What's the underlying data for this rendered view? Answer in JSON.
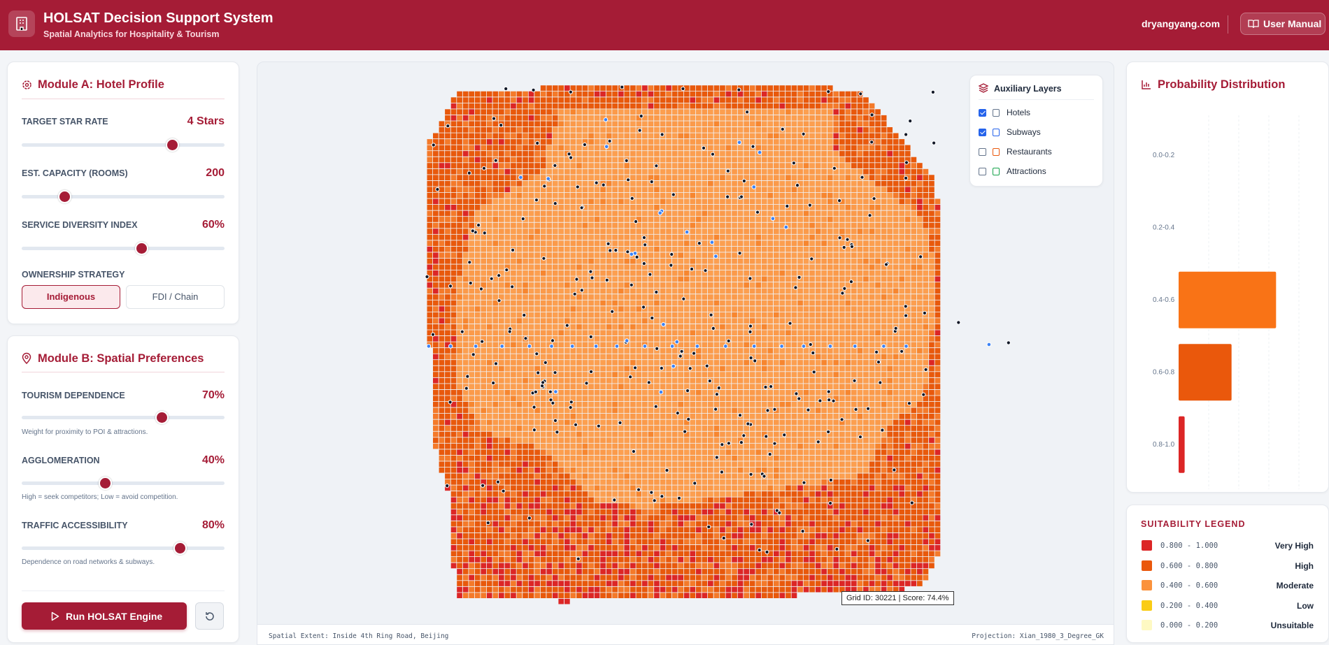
{
  "header": {
    "title": "HOLSAT Decision Support System",
    "subtitle": "Spatial Analytics for Hospitality & Tourism",
    "site": "dryangyang.com",
    "manual": "User Manual"
  },
  "module_a": {
    "title": "Module A: Hotel Profile",
    "fields": [
      {
        "label": "TARGET STAR RATE",
        "value": "4 Stars"
      },
      {
        "label": "EST. CAPACITY (ROOMS)",
        "value": "200"
      },
      {
        "label": "SERVICE DIVERSITY INDEX",
        "value": "60%"
      }
    ],
    "ownership": {
      "label": "OWNERSHIP STRATEGY",
      "options": [
        "Indigenous",
        "FDI / Chain"
      ]
    }
  },
  "module_b": {
    "title": "Module B: Spatial Preferences",
    "fields": [
      {
        "label": "TOURISM DEPENDENCE",
        "value": "70%",
        "note": "Weight for proximity to POI & attractions."
      },
      {
        "label": "AGGLOMERATION",
        "value": "40%",
        "note": "High = seek competitors; Low = avoid competition."
      },
      {
        "label": "TRAFFIC ACCESSIBILITY",
        "value": "80%",
        "note": "Dependence on road networks & subways."
      }
    ]
  },
  "actions": {
    "run": "Run HOLSAT Engine"
  },
  "map": {
    "layers_title": "Auxiliary Layers",
    "layers": [
      {
        "name": "Hotels",
        "checked": true
      },
      {
        "name": "Subways",
        "checked": true
      },
      {
        "name": "Restaurants",
        "checked": false
      },
      {
        "name": "Attractions",
        "checked": false
      }
    ],
    "tooltip": "Grid ID: 30221 | Score: 74.4%",
    "extent": "Spatial Extent: Inside 4th Ring Road, Beijing",
    "projection": "Projection: Xian_1980_3_Degree_GK"
  },
  "chart_data": {
    "type": "hbar",
    "title": "Probability Distribution",
    "categories": [
      "0.0-0.2",
      "0.2-0.4",
      "0.4-0.6",
      "0.6-0.8",
      "0.8-1.0"
    ],
    "values": [
      0,
      0,
      81,
      44,
      5
    ],
    "colors": [
      "#fef9c3",
      "#facc15",
      "#f97316",
      "#ea580c",
      "#dc2626"
    ],
    "xlim": [
      0,
      100
    ]
  },
  "legend": {
    "title": "SUITABILITY LEGEND",
    "items": [
      {
        "range": "0.800 - 1.000",
        "label": "Very High",
        "color": "#dc2626"
      },
      {
        "range": "0.600 - 0.800",
        "label": "High",
        "color": "#ea580c"
      },
      {
        "range": "0.400 - 0.600",
        "label": "Moderate",
        "color": "#fb923c"
      },
      {
        "range": "0.200 - 0.400",
        "label": "Low",
        "color": "#facc15"
      },
      {
        "range": "0.000 - 0.200",
        "label": "Unsuitable",
        "color": "#fef9c3"
      }
    ]
  }
}
